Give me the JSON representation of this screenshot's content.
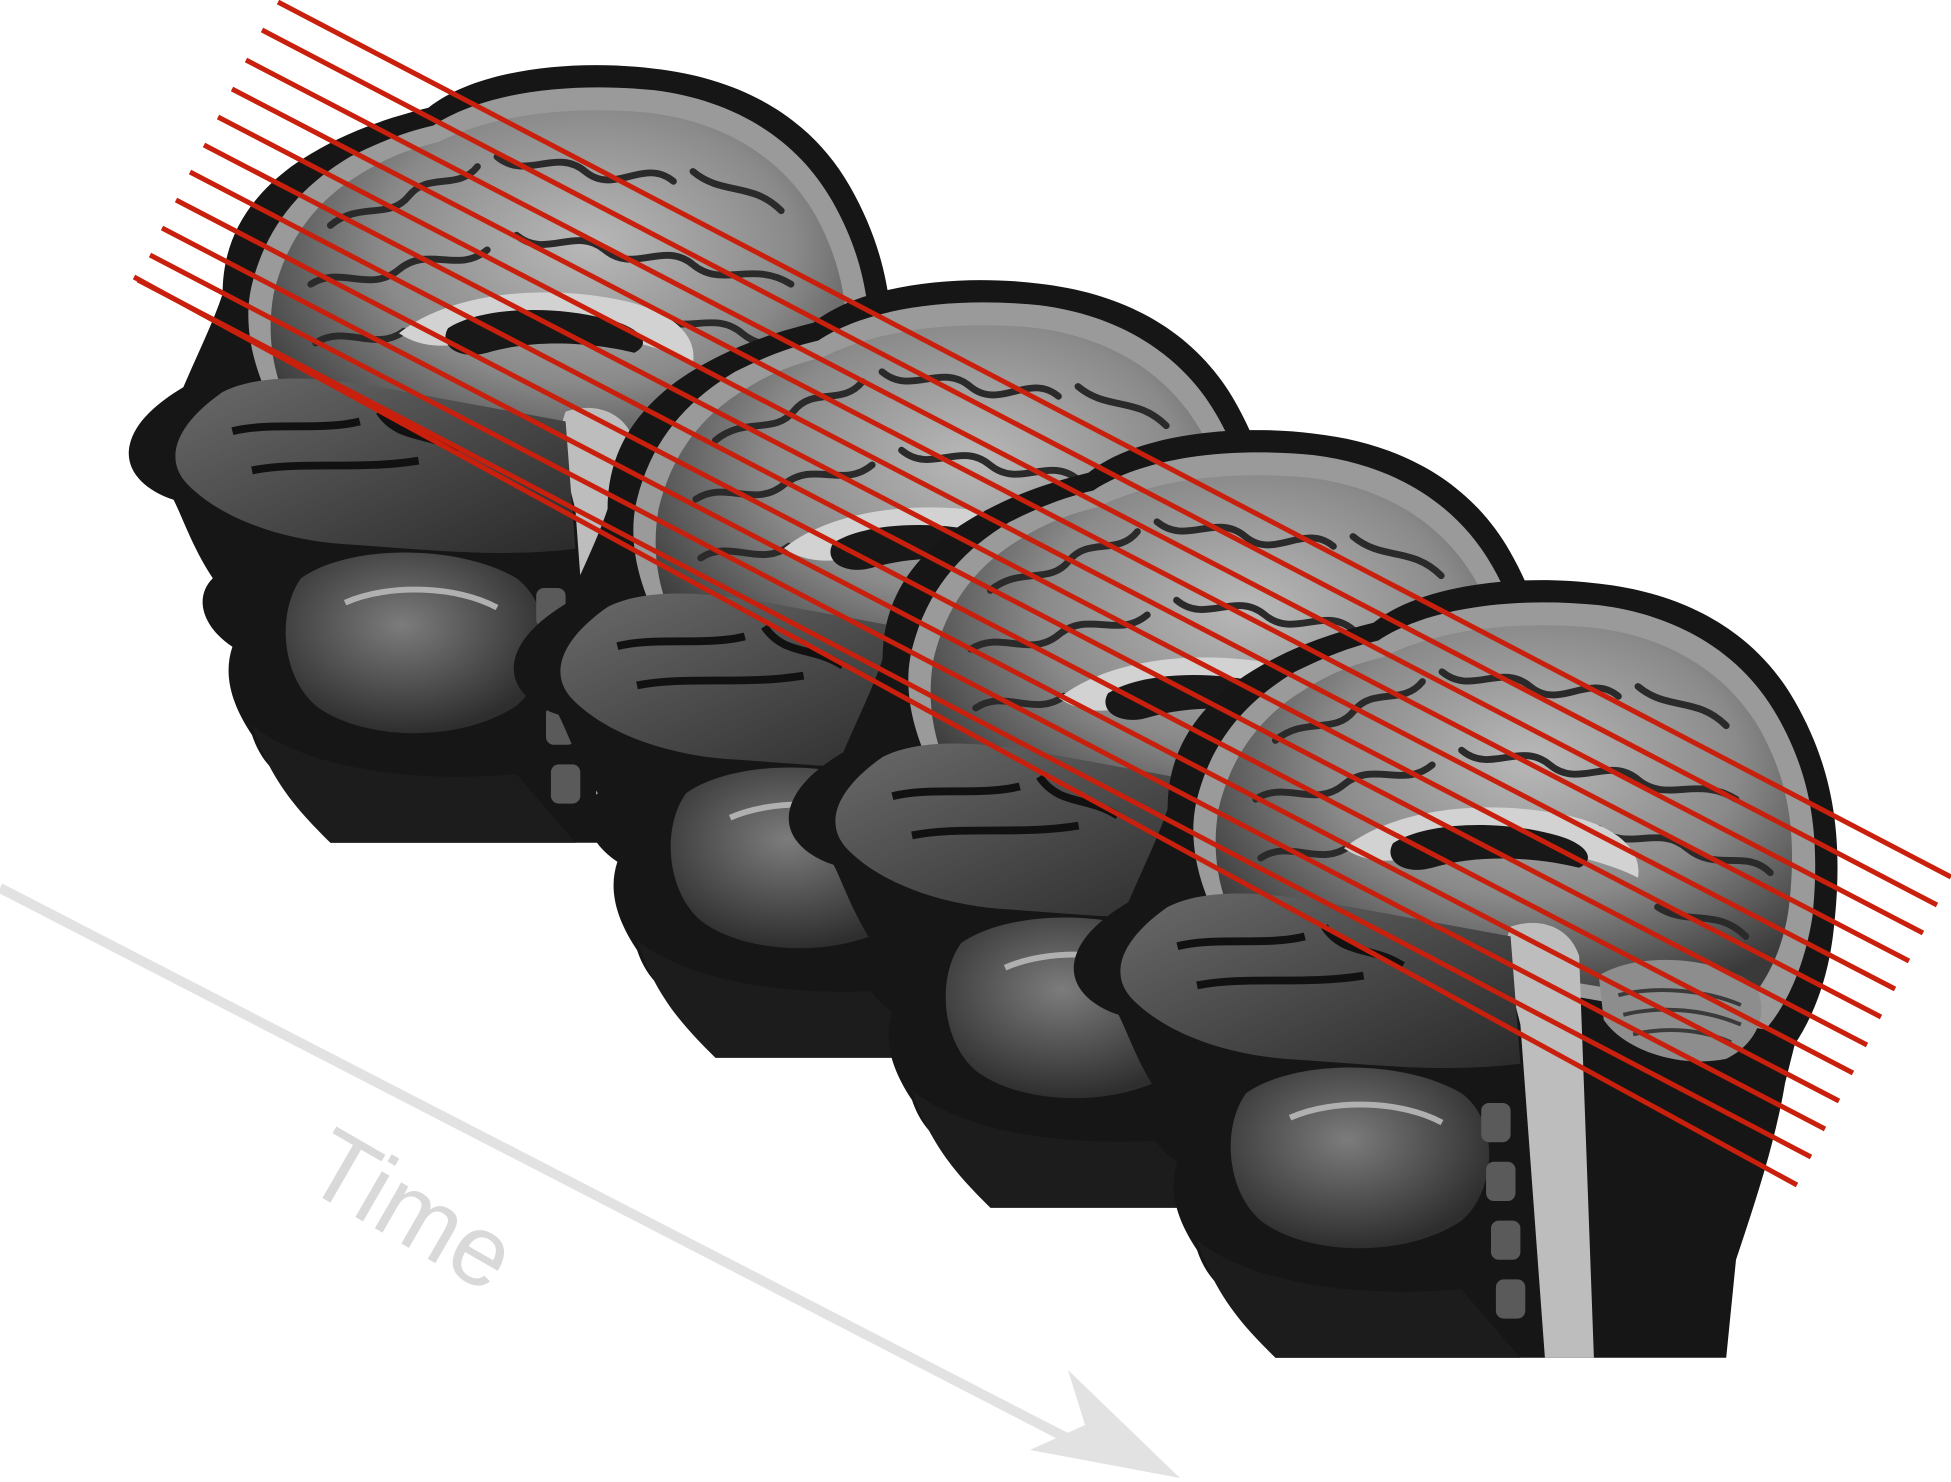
{
  "figure": {
    "time_label": "Time",
    "colors": {
      "slice_lines": "#c8200c",
      "time_arrow": "#e2e2e2",
      "time_text": "#d9d9d9",
      "mri_dark": "#141414",
      "mri_mid": "#7a7a7a",
      "mri_light": "#c4c4c4"
    },
    "frames": [
      {
        "name": "mri-frame-1"
      },
      {
        "name": "mri-frame-2"
      },
      {
        "name": "mri-frame-3"
      },
      {
        "name": "mri-frame-4"
      }
    ],
    "slice_line_count": 12
  }
}
